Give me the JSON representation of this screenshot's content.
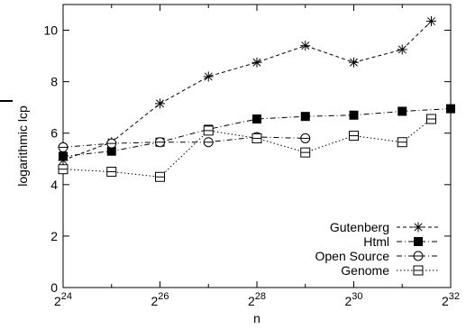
{
  "chart_data": {
    "type": "line",
    "xlabel": "n",
    "ylabel": "logarithmic lcp",
    "x_scale": "log2",
    "xlim": [
      24,
      32
    ],
    "ylim": [
      0,
      11
    ],
    "x_ticks": [
      {
        "base": "2",
        "exp": "24"
      },
      {
        "base": "2",
        "exp": "26"
      },
      {
        "base": "2",
        "exp": "28"
      },
      {
        "base": "2",
        "exp": "30"
      },
      {
        "base": "2",
        "exp": "32"
      }
    ],
    "y_ticks": [
      "0",
      "2",
      "4",
      "6",
      "8",
      "10"
    ],
    "legend_position": "bottom-right",
    "grid": false,
    "series": [
      {
        "name": "Gutenberg",
        "marker": "asterisk",
        "dash": "dashed",
        "color": "#000000",
        "x": [
          24,
          25,
          26,
          27,
          28,
          29,
          30,
          31,
          31.6
        ],
        "y": [
          4.95,
          5.65,
          7.15,
          8.2,
          8.75,
          9.4,
          8.75,
          9.25,
          10.35
        ]
      },
      {
        "name": "Html",
        "marker": "filled-square",
        "dash": "dashdot",
        "color": "#000000",
        "x": [
          24,
          25,
          26,
          27,
          28,
          29,
          30,
          31,
          32
        ],
        "y": [
          5.1,
          5.3,
          5.65,
          6.15,
          6.55,
          6.65,
          6.7,
          6.85,
          6.95
        ]
      },
      {
        "name": "Open Source",
        "marker": "circle",
        "dash": "dashdot",
        "color": "#000000",
        "x": [
          24,
          25,
          26,
          27,
          28,
          29
        ],
        "y": [
          5.45,
          5.6,
          5.65,
          5.65,
          5.85,
          5.8
        ]
      },
      {
        "name": "Genome",
        "marker": "open-square",
        "dash": "dotted",
        "color": "#000000",
        "x": [
          24,
          25,
          26,
          27,
          28,
          29,
          30,
          31,
          31.6
        ],
        "y": [
          4.6,
          4.5,
          4.3,
          6.1,
          5.8,
          5.25,
          5.9,
          5.65,
          6.55
        ]
      }
    ]
  }
}
